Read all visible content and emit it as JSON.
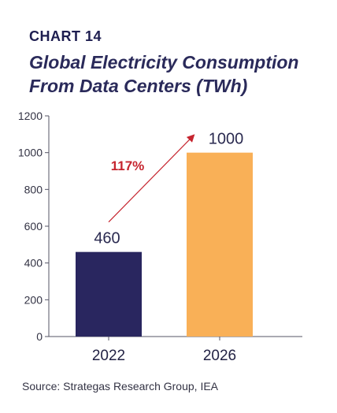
{
  "header": {
    "chart_label": "CHART 14",
    "title_line1": "Global Electricity Consumption",
    "title_line2": "From Data Centers (TWh)"
  },
  "chart_data": {
    "type": "bar",
    "title": "Global Electricity Consumption From Data Centers (TWh)",
    "categories": [
      "2022",
      "2026"
    ],
    "values": [
      460,
      1000
    ],
    "data_labels": [
      "460",
      "1000"
    ],
    "bar_colors": [
      "#29265f",
      "#f9b057"
    ],
    "ylim": [
      0,
      1200
    ],
    "yticks": [
      0,
      200,
      400,
      600,
      800,
      1000,
      1200
    ],
    "grid": false,
    "annotation": {
      "text": "117%",
      "color": "#c6252f",
      "from_category": "2022",
      "to_category": "2026"
    }
  },
  "footer": {
    "source": "Source:  Strategas Research Group, IEA"
  }
}
